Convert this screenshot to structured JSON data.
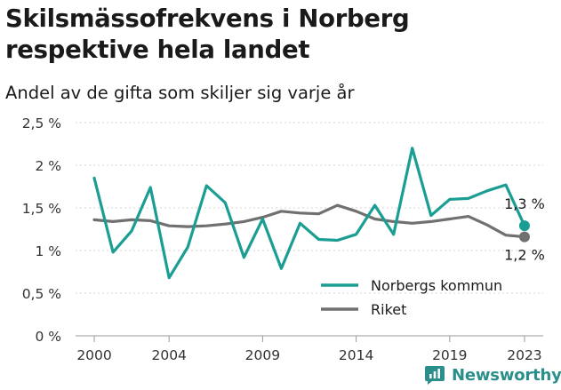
{
  "header": {
    "title": "Skilsmässofrekvens i Norberg respektive hela landet",
    "subtitle": "Andel av de gifta som skiljer sig varje år"
  },
  "brand": {
    "name": "Newsworthy",
    "icon": "newsworthy-logo-icon",
    "color": "#2a8f8a"
  },
  "chart_data": {
    "type": "line",
    "title": "Skilsmässofrekvens i Norberg respektive hela landet",
    "subtitle": "Andel av de gifta som skiljer sig varje år",
    "xlabel": "",
    "ylabel": "",
    "x": [
      2000,
      2001,
      2002,
      2003,
      2004,
      2005,
      2006,
      2007,
      2008,
      2009,
      2010,
      2011,
      2012,
      2013,
      2014,
      2015,
      2016,
      2017,
      2018,
      2019,
      2020,
      2021,
      2022,
      2023
    ],
    "xlim": [
      1999,
      2024
    ],
    "ylim": [
      0,
      2.5
    ],
    "x_ticks": [
      2000,
      2004,
      2009,
      2014,
      2019,
      2023
    ],
    "y_ticks": [
      0,
      0.5,
      1,
      1.5,
      2,
      2.5
    ],
    "y_tick_labels": [
      "0 %",
      "0,5 %",
      "1 %",
      "1,5 %",
      "2 %",
      "2,5 %"
    ],
    "grid": "horizontal",
    "legend_position": "bottom-right",
    "series": [
      {
        "name": "Norbergs kommun",
        "color": "#1a9e94",
        "values": [
          1.85,
          0.98,
          1.23,
          1.74,
          0.68,
          1.04,
          1.76,
          1.56,
          0.92,
          1.37,
          0.79,
          1.32,
          1.13,
          1.12,
          1.19,
          1.53,
          1.19,
          2.2,
          1.41,
          1.6,
          1.61,
          1.7,
          1.77,
          1.29
        ],
        "end_label": "1,3 %"
      },
      {
        "name": "Riket",
        "color": "#707070",
        "values": [
          1.36,
          1.34,
          1.36,
          1.35,
          1.29,
          1.28,
          1.29,
          1.31,
          1.34,
          1.39,
          1.46,
          1.44,
          1.43,
          1.53,
          1.46,
          1.37,
          1.34,
          1.32,
          1.34,
          1.37,
          1.4,
          1.3,
          1.18,
          1.16
        ],
        "end_label": "1,2 %"
      }
    ]
  }
}
